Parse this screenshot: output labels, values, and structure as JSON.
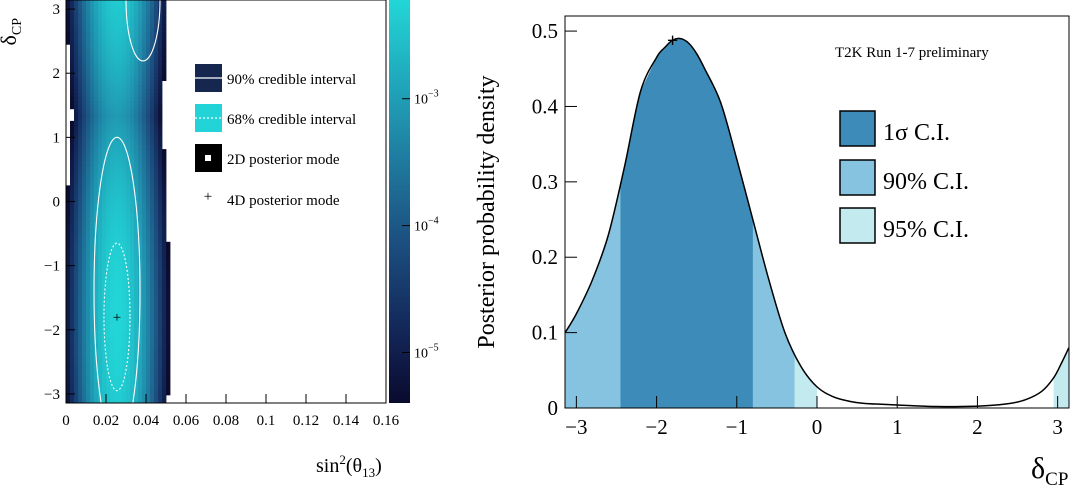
{
  "chart_data": [
    {
      "type": "heatmap",
      "x_label_main": "sin",
      "x_label_sup": "2",
      "x_label_paren": "(θ",
      "x_label_sub": "13",
      "x_label_close": ")",
      "y_label_main": "δ",
      "y_label_sub": "CP",
      "xlim": [
        0,
        0.16
      ],
      "ylim": [
        -3.1416,
        3.1416
      ],
      "x_ticks": [
        0,
        0.02,
        0.04,
        0.06,
        0.08,
        0.1,
        0.12,
        0.14,
        0.16
      ],
      "x_tick_labels": [
        "0",
        "0.02",
        "0.04",
        "0.06",
        "0.08",
        "0.1",
        "0.12",
        "0.14",
        "0.16"
      ],
      "y_ticks": [
        -3,
        -2,
        -1,
        0,
        1,
        2,
        3
      ],
      "y_tick_labels": [
        "−3",
        "−2",
        "−1",
        "0",
        "1",
        "2",
        "3"
      ],
      "color_scale": "log",
      "z_range": [
        4e-06,
        0.006
      ],
      "colorbar_ticks": [
        0.001,
        0.0001,
        1e-05
      ],
      "colorbar_labels": [
        {
          "base": "10",
          "exp": "−3"
        },
        {
          "base": "10",
          "exp": "−4"
        },
        {
          "base": "10",
          "exp": "−5"
        }
      ],
      "colormap": [
        "#0a0a2e",
        "#142a5c",
        "#1c4f80",
        "#1f7aa0",
        "#20a8bc",
        "#22d6d6"
      ],
      "posterior_peak": {
        "x": 0.0255,
        "y": -1.8
      },
      "legend": [
        {
          "label": "90% credible interval",
          "swatch": "#15264f",
          "line": "solid"
        },
        {
          "label": "68% credible interval",
          "swatch": "#22d4d8",
          "line": "dotted"
        },
        {
          "label": "2D posterior mode",
          "swatch": "#000000",
          "marker": "square"
        },
        {
          "label": "4D posterior mode",
          "marker": "plus",
          "color": "#3a6df0"
        }
      ],
      "markers": [
        {
          "name": "4D posterior mode",
          "x": 0.0255,
          "y": -1.8,
          "color": "#3a6df0"
        }
      ]
    },
    {
      "type": "area",
      "ylabel": "Posterior probability density",
      "xlabel_main": "δ",
      "xlabel_sub": "CP",
      "annotation": "T2K Run 1-7 preliminary",
      "xlim": [
        -3.1416,
        3.1416
      ],
      "ylim": [
        0,
        0.52
      ],
      "x_ticks": [
        -3,
        -2,
        -1,
        0,
        1,
        2,
        3
      ],
      "x_tick_labels": [
        "−3",
        "−2",
        "−1",
        "0",
        "1",
        "2",
        "3"
      ],
      "y_ticks": [
        0,
        0.1,
        0.2,
        0.3,
        0.4,
        0.5
      ],
      "y_tick_labels": [
        "0",
        "0.1",
        "0.2",
        "0.3",
        "0.4",
        "0.5"
      ],
      "x": [
        -3.14,
        -3.0,
        -2.8,
        -2.6,
        -2.4,
        -2.2,
        -2.0,
        -1.9,
        -1.8,
        -1.7,
        -1.6,
        -1.5,
        -1.4,
        -1.2,
        -1.0,
        -0.8,
        -0.6,
        -0.4,
        -0.2,
        0.0,
        0.2,
        0.4,
        0.6,
        0.8,
        1.0,
        1.2,
        1.5,
        1.8,
        2.1,
        2.4,
        2.6,
        2.8,
        2.95,
        3.05,
        3.14
      ],
      "y": [
        0.1,
        0.125,
        0.17,
        0.23,
        0.32,
        0.42,
        0.465,
        0.478,
        0.488,
        0.49,
        0.484,
        0.47,
        0.45,
        0.405,
        0.33,
        0.25,
        0.17,
        0.1,
        0.055,
        0.028,
        0.015,
        0.009,
        0.006,
        0.005,
        0.004,
        0.003,
        0.002,
        0.002,
        0.003,
        0.006,
        0.011,
        0.022,
        0.04,
        0.06,
        0.08
      ],
      "intervals": [
        {
          "name": "95% C.I.",
          "color": "#c2eaef",
          "ranges": [
            [
              -3.1416,
              0.0
            ],
            [
              2.95,
              3.1416
            ]
          ]
        },
        {
          "name": "90% C.I.",
          "color": "#85c3e0",
          "ranges": [
            [
              -3.1416,
              -0.28
            ]
          ]
        },
        {
          "name": "1σ C.I.",
          "color": "#3d8bb8",
          "ranges": [
            [
              -2.45,
              -0.8
            ]
          ]
        }
      ],
      "legend": [
        {
          "label": "1σ C.I.",
          "color": "#3d8bb8"
        },
        {
          "label": "90% C.I.",
          "color": "#85c3e0"
        },
        {
          "label": "95% C.I.",
          "color": "#c2eaef"
        }
      ],
      "marker": {
        "x": -1.8,
        "y": 0.488
      }
    }
  ]
}
